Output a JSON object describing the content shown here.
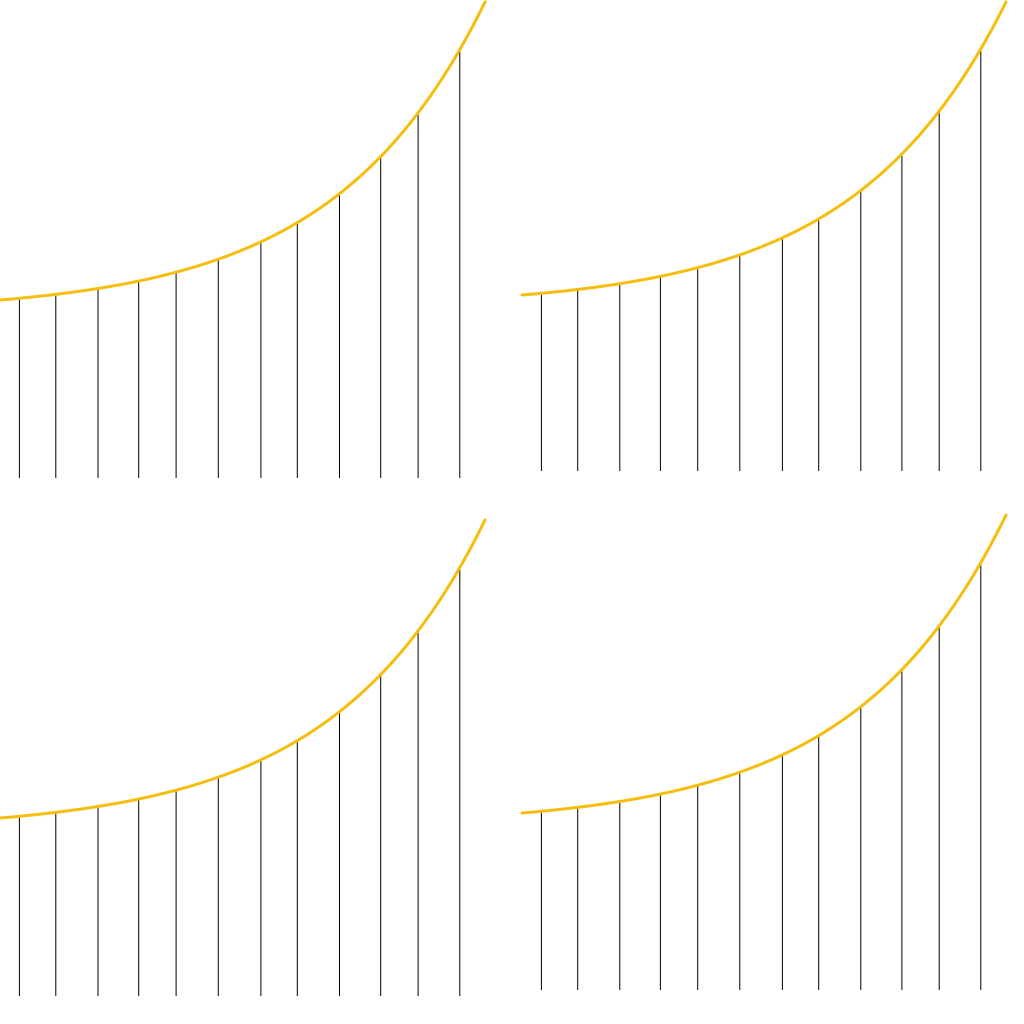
{
  "colors": {
    "background": "#ffffff",
    "curve": "#F5BE0F",
    "lines": "#000000"
  },
  "panels": [
    {
      "name": "panel-top-left",
      "curve": "curve-yellow",
      "line_count": 12
    },
    {
      "name": "panel-top-right",
      "curve": "curve-yellow",
      "line_count": 12
    },
    {
      "name": "panel-bottom-left",
      "curve": "curve-yellow",
      "line_count": 12
    },
    {
      "name": "panel-bottom-right",
      "curve": "curve-yellow",
      "line_count": 12
    }
  ]
}
